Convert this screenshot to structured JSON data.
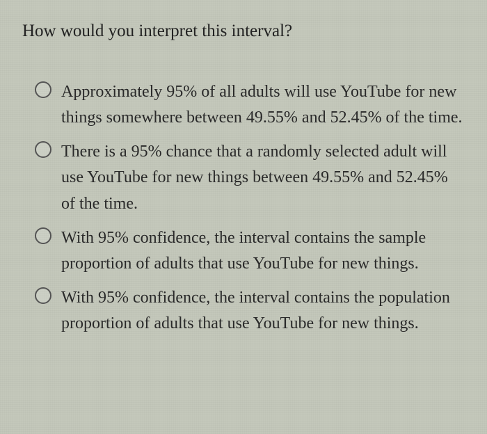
{
  "question": "How would you interpret this interval?",
  "options": [
    {
      "text": "Approximately 95% of all adults will use YouTube for new things somewhere between 49.55% and 52.45% of the time."
    },
    {
      "text": "There is a 95% chance that a randomly selected adult will use YouTube for new things between 49.55% and 52.45% of the time."
    },
    {
      "text": "With 95% confidence, the interval contains the sample proportion of adults that use YouTube for new things."
    },
    {
      "text": "With 95% confidence, the interval contains the population proportion of adults that use YouTube for new things."
    }
  ],
  "style": {
    "background_color": "#c4c8bb",
    "text_color": "#2a2a2a",
    "question_fontsize": 25,
    "option_fontsize": 24,
    "radio_border_color": "#555",
    "radio_size": 24,
    "font_family": "Georgia, serif"
  }
}
